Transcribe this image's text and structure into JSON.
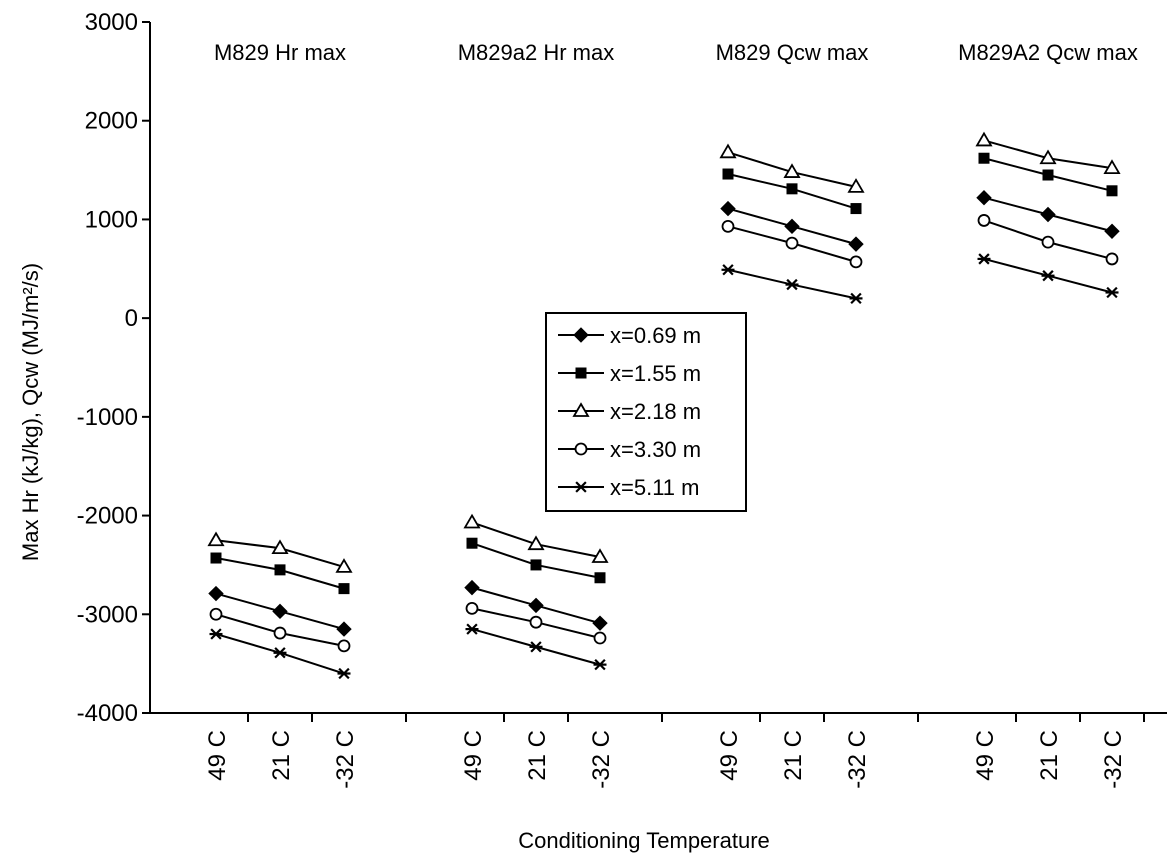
{
  "chart_data": {
    "type": "line",
    "title": "",
    "xlabel": "Conditioning Temperature",
    "ylabel": "Max Hr (kJ/kg), Qcw (MJ/m²/s)",
    "ylim": [
      -4000,
      3000
    ],
    "yticks": [
      3000,
      2000,
      1000,
      0,
      -1000,
      -2000,
      -3000,
      -4000
    ],
    "grid": false,
    "legend_position": "center",
    "categories": [
      "49 C",
      "21 C",
      "-32 C"
    ],
    "groups": [
      {
        "label": "M829 Hr max",
        "series": [
          {
            "name": "x=0.69 m",
            "values": [
              -2790,
              -2970,
              -3150
            ]
          },
          {
            "name": "x=1.55 m",
            "values": [
              -2430,
              -2550,
              -2740
            ]
          },
          {
            "name": "x=2.18 m",
            "values": [
              -2250,
              -2330,
              -2520
            ]
          },
          {
            "name": "x=3.30 m",
            "values": [
              -3000,
              -3190,
              -3320
            ]
          },
          {
            "name": "x=5.11 m",
            "values": [
              -3200,
              -3390,
              -3600
            ]
          }
        ]
      },
      {
        "label": "M829a2 Hr max",
        "series": [
          {
            "name": "x=0.69 m",
            "values": [
              -2730,
              -2910,
              -3090
            ]
          },
          {
            "name": "x=1.55 m",
            "values": [
              -2280,
              -2500,
              -2630
            ]
          },
          {
            "name": "x=2.18 m",
            "values": [
              -2070,
              -2290,
              -2420
            ]
          },
          {
            "name": "x=3.30 m",
            "values": [
              -2940,
              -3080,
              -3240
            ]
          },
          {
            "name": "x=5.11 m",
            "values": [
              -3150,
              -3330,
              -3510
            ]
          }
        ]
      },
      {
        "label": "M829 Qcw max",
        "series": [
          {
            "name": "x=0.69 m",
            "values": [
              1110,
              930,
              750
            ]
          },
          {
            "name": "x=1.55 m",
            "values": [
              1460,
              1310,
              1110
            ]
          },
          {
            "name": "x=2.18 m",
            "values": [
              1680,
              1480,
              1330
            ]
          },
          {
            "name": "x=3.30 m",
            "values": [
              930,
              760,
              570
            ]
          },
          {
            "name": "x=5.11 m",
            "values": [
              490,
              340,
              200
            ]
          }
        ]
      },
      {
        "label": "M829A2 Qcw max",
        "series": [
          {
            "name": "x=0.69 m",
            "values": [
              1220,
              1050,
              880
            ]
          },
          {
            "name": "x=1.55 m",
            "values": [
              1620,
              1450,
              1290
            ]
          },
          {
            "name": "x=2.18 m",
            "values": [
              1800,
              1620,
              1520
            ]
          },
          {
            "name": "x=3.30 m",
            "values": [
              990,
              770,
              600
            ]
          },
          {
            "name": "x=5.11 m",
            "values": [
              600,
              430,
              260
            ]
          }
        ]
      }
    ],
    "markers": {
      "x=0.69 m": "filled-diamond",
      "x=1.55 m": "filled-square",
      "x=2.18 m": "open-triangle",
      "x=3.30 m": "open-circle",
      "x=5.11 m": "asterisk"
    },
    "line_color": "#000000"
  }
}
